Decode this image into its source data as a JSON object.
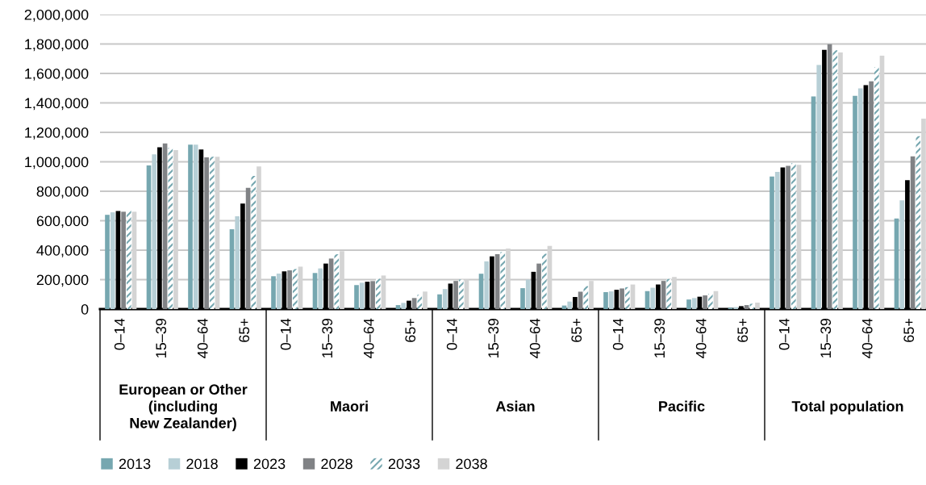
{
  "chart_data": {
    "type": "bar",
    "categories": [
      "0–14",
      "15–39",
      "40–64",
      "65+",
      "0–14",
      "15–39",
      "40–64",
      "65+",
      "0–14",
      "15–39",
      "40–64",
      "65+",
      "0–14",
      "15–39",
      "40–64",
      "65+",
      "0–14",
      "15–39",
      "40–64",
      "65+"
    ],
    "annotations": [
      "European or Other\n(including\nNew Zealander)",
      "Maori",
      "Asian",
      "Pacific",
      "Total population"
    ],
    "series": [
      {
        "name": "2013",
        "color": "#76a7b0",
        "values": [
          640000,
          975000,
          1117000,
          542000,
          223000,
          245000,
          163000,
          27000,
          100000,
          240000,
          142000,
          24000,
          115000,
          122000,
          65000,
          9000,
          900000,
          1444000,
          1448000,
          615000
        ]
      },
      {
        "name": "2018",
        "color": "#b7cfd6",
        "values": [
          657000,
          1050000,
          1117000,
          630000,
          241000,
          276000,
          179000,
          42000,
          136000,
          324000,
          200000,
          51000,
          120000,
          145000,
          75000,
          13000,
          931000,
          1658000,
          1499000,
          738000
        ]
      },
      {
        "name": "2023",
        "color": "#000000",
        "values": [
          666000,
          1098000,
          1083000,
          717000,
          256000,
          309000,
          186000,
          57000,
          173000,
          358000,
          253000,
          82000,
          131000,
          167000,
          84000,
          20000,
          962000,
          1760000,
          1521000,
          876000
        ]
      },
      {
        "name": "2028",
        "color": "#808285",
        "values": [
          661000,
          1125000,
          1030000,
          823000,
          263000,
          343000,
          190000,
          75000,
          191000,
          373000,
          309000,
          118000,
          140000,
          191000,
          93000,
          27000,
          973000,
          1799000,
          1547000,
          1037000
        ]
      },
      {
        "name": "2033",
        "color": "#76a7b0",
        "values": [
          668000,
          1094000,
          1034000,
          904000,
          272000,
          372000,
          206000,
          97000,
          200000,
          387000,
          376000,
          156000,
          149000,
          204000,
          104000,
          36000,
          990000,
          1757000,
          1643000,
          1174000
        ]
      },
      {
        "name": "2038",
        "color": "#d4d4d4",
        "values": [
          661000,
          1079000,
          1034000,
          969000,
          288000,
          393000,
          228000,
          119000,
          200000,
          411000,
          429000,
          191000,
          167000,
          218000,
          122000,
          44000,
          979000,
          1742000,
          1720000,
          1293000
        ]
      }
    ],
    "ylim": [
      0,
      2000000
    ],
    "yticks": [
      {
        "value": 0,
        "label": "0"
      },
      {
        "value": 200000,
        "label": "200,000"
      },
      {
        "value": 400000,
        "label": "400,000"
      },
      {
        "value": 600000,
        "label": "600,000"
      },
      {
        "value": 800000,
        "label": "800,000"
      },
      {
        "value": 1000000,
        "label": "1,000,000"
      },
      {
        "value": 1200000,
        "label": "1,200,000"
      },
      {
        "value": 1400000,
        "label": "1,400,000"
      },
      {
        "value": 1600000,
        "label": "1,600,000"
      },
      {
        "value": 1800000,
        "label": "1,800,000"
      },
      {
        "value": 2000000,
        "label": "2,000,000"
      }
    ],
    "grid": "y",
    "legend": "bottom left"
  }
}
